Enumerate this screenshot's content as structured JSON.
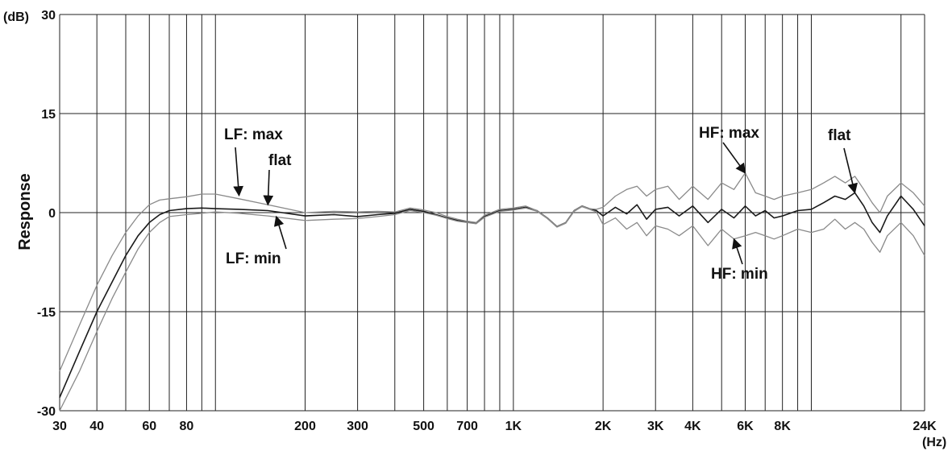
{
  "chart_data": {
    "type": "line",
    "ylabel": "Response",
    "yunit": "(dB)",
    "xunit": "(Hz)",
    "xscale": "log",
    "xlim": [
      30,
      24000
    ],
    "ylim": [
      -30,
      30
    ],
    "grid": true,
    "y_ticks": [
      {
        "value": 30,
        "label": "30"
      },
      {
        "value": 15,
        "label": "15"
      },
      {
        "value": 0,
        "label": "0"
      },
      {
        "value": -15,
        "label": "-15"
      },
      {
        "value": -30,
        "label": "-30"
      }
    ],
    "x_ticks": [
      {
        "value": 30,
        "label": "30"
      },
      {
        "value": 40,
        "label": "40"
      },
      {
        "value": 60,
        "label": "60"
      },
      {
        "value": 80,
        "label": "80"
      },
      {
        "value": 200,
        "label": "200"
      },
      {
        "value": 300,
        "label": "300"
      },
      {
        "value": 500,
        "label": "500"
      },
      {
        "value": 700,
        "label": "700"
      },
      {
        "value": 1000,
        "label": "1K"
      },
      {
        "value": 2000,
        "label": "2K"
      },
      {
        "value": 3000,
        "label": "3K"
      },
      {
        "value": 4000,
        "label": "4K"
      },
      {
        "value": 6000,
        "label": "6K"
      },
      {
        "value": 8000,
        "label": "8K"
      },
      {
        "value": 24000,
        "label": "24K"
      }
    ],
    "x_gridlines": [
      30,
      40,
      50,
      60,
      70,
      80,
      90,
      100,
      200,
      300,
      400,
      500,
      600,
      700,
      800,
      900,
      1000,
      2000,
      3000,
      4000,
      5000,
      6000,
      7000,
      8000,
      9000,
      10000,
      20000
    ],
    "series": [
      {
        "color": "#1a1a1a",
        "x": [
          30,
          35,
          40,
          45,
          50,
          55,
          60,
          65,
          70,
          80,
          90,
          100,
          120,
          150,
          200,
          250,
          300,
          350,
          400,
          450,
          500,
          550,
          600,
          650,
          700,
          750,
          800,
          900,
          1000,
          1100,
          1200,
          1300,
          1400,
          1500,
          1600,
          1700,
          1800,
          1900,
          2000,
          2200,
          2400,
          2600,
          2800,
          3000,
          3300,
          3600,
          4000,
          4500,
          5000,
          5500,
          6000,
          6500,
          7000,
          7500,
          8000,
          9000,
          10000,
          11000,
          12000,
          13000,
          14000,
          15000,
          16000,
          17000,
          18000,
          20000,
          22000,
          24000
        ],
        "values": [
          -28,
          -21,
          -15,
          -10.5,
          -6.5,
          -3.5,
          -1.5,
          -0.3,
          0.3,
          0.6,
          0.7,
          0.6,
          0.5,
          0.3,
          -0.5,
          -0.3,
          -0.6,
          -0.3,
          -0.1,
          0.5,
          0.2,
          -0.3,
          -0.8,
          -1.2,
          -1.4,
          -1.6,
          -0.6,
          0.3,
          0.5,
          0.8,
          0.3,
          -0.8,
          -2.1,
          -1.5,
          0.3,
          1.0,
          0.6,
          0.3,
          -0.5,
          0.8,
          -0.2,
          1.2,
          -1.0,
          0.5,
          0.8,
          -0.5,
          1.0,
          -1.5,
          0.5,
          -0.8,
          1.0,
          -0.5,
          0.3,
          -0.8,
          -0.5,
          0.3,
          0.5,
          1.5,
          2.5,
          2.0,
          3.0,
          1.0,
          -1.5,
          -3.0,
          -0.5,
          2.5,
          0.5,
          -2.0
        ]
      },
      {
        "color": "#8a8a8a",
        "x": [
          30,
          35,
          40,
          45,
          50,
          55,
          60,
          65,
          70,
          80,
          90,
          100,
          120,
          150,
          200,
          250,
          300,
          350,
          400,
          450,
          500,
          550,
          600,
          650,
          700,
          750,
          800,
          900,
          1000,
          1100,
          1200,
          1300,
          1400,
          1500,
          1600,
          1700,
          1800,
          1900,
          2000,
          2200,
          2400,
          2600,
          2800,
          3000,
          3300,
          3600,
          4000,
          4500,
          5000,
          5500,
          6000,
          6500,
          7000,
          7500,
          8000,
          9000,
          10000,
          11000,
          12000,
          13000,
          14000,
          15000,
          16000,
          17000,
          18000,
          20000,
          22000,
          24000
        ],
        "values": [
          -24,
          -17,
          -11,
          -6.5,
          -3,
          -0.5,
          1.2,
          1.9,
          2.1,
          2.4,
          2.8,
          2.8,
          2.1,
          1.2,
          0.0,
          0.2,
          0.1,
          0.2,
          0.1,
          0.7,
          0.4,
          0.0,
          -0.6,
          -1.0,
          -1.3,
          -1.5,
          -0.4,
          0.5,
          0.7,
          1.0,
          0.3,
          -0.8,
          -2.1,
          -1.5,
          0.3,
          1.0,
          0.6,
          0.5,
          0.8,
          2.5,
          3.5,
          4.0,
          2.5,
          3.5,
          4.0,
          2.0,
          4.0,
          2.0,
          4.5,
          3.5,
          6.0,
          3.0,
          2.5,
          2.0,
          2.5,
          3.0,
          3.5,
          4.5,
          5.5,
          4.5,
          5.5,
          3.5,
          1.5,
          0.0,
          2.5,
          4.5,
          3.0,
          1.0
        ]
      },
      {
        "color": "#8a8a8a",
        "x": [
          30,
          35,
          40,
          45,
          50,
          55,
          60,
          65,
          70,
          80,
          90,
          100,
          120,
          150,
          200,
          250,
          300,
          350,
          400,
          450,
          500,
          550,
          600,
          650,
          700,
          750,
          800,
          900,
          1000,
          1100,
          1200,
          1300,
          1400,
          1500,
          1600,
          1700,
          1800,
          1900,
          2000,
          2200,
          2400,
          2600,
          2800,
          3000,
          3300,
          3600,
          4000,
          4500,
          5000,
          5500,
          6000,
          6500,
          7000,
          7500,
          8000,
          9000,
          10000,
          11000,
          12000,
          13000,
          14000,
          15000,
          16000,
          17000,
          18000,
          20000,
          22000,
          24000
        ],
        "values": [
          -30,
          -24,
          -18,
          -13,
          -9,
          -5.5,
          -3,
          -1.5,
          -0.6,
          -0.3,
          -0.1,
          0.1,
          -0.1,
          -0.5,
          -1.2,
          -1.0,
          -0.9,
          -0.6,
          -0.3,
          0.3,
          0.0,
          -0.4,
          -0.9,
          -1.3,
          -1.5,
          -1.7,
          -0.7,
          0.2,
          0.4,
          0.7,
          0.2,
          -0.9,
          -2.2,
          -1.6,
          0.2,
          0.9,
          0.5,
          0.1,
          -1.8,
          -0.8,
          -2.5,
          -1.5,
          -3.5,
          -2.0,
          -2.5,
          -3.5,
          -2.0,
          -5.0,
          -2.5,
          -4.0,
          -3.5,
          -3.0,
          -3.5,
          -4.0,
          -3.5,
          -2.5,
          -3.0,
          -2.5,
          -1.0,
          -2.5,
          -1.5,
          -2.5,
          -4.5,
          -6.0,
          -3.5,
          -1.5,
          -3.5,
          -6.5
        ]
      }
    ],
    "annotations": [
      {
        "text": "LF: max",
        "target_x": 120,
        "target_y": 2.6
      },
      {
        "text": "flat",
        "target_x": 150,
        "target_y": 1.2
      },
      {
        "text": "LF: min",
        "target_x": 160,
        "target_y": -0.6
      },
      {
        "text": "HF: max",
        "target_x": 6000,
        "target_y": 6.0
      },
      {
        "text": "flat",
        "target_x": 14000,
        "target_y": 3.0
      },
      {
        "text": "HF: min",
        "target_x": 5500,
        "target_y": -4.0
      }
    ]
  }
}
